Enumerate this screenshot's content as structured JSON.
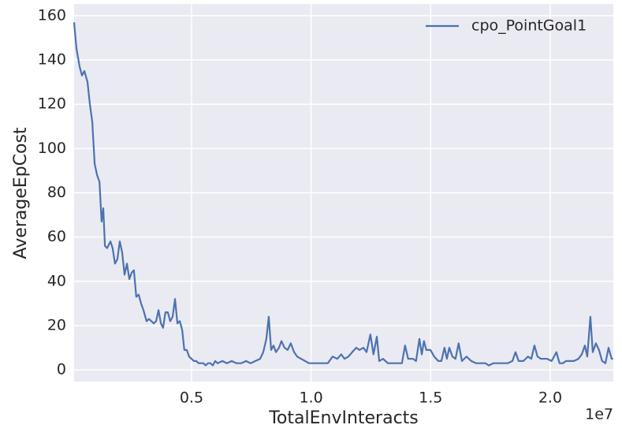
{
  "chart_data": {
    "type": "line",
    "xlabel": "TotalEnvInteracts",
    "ylabel": "AverageEpCost",
    "x_offset_label": "1e7",
    "xlim": [
      0.009,
      2.264
    ],
    "ylim": [
      -5.3,
      165.3
    ],
    "xticks": [
      0.5,
      {
        "value": 1,
        "label": "1.0"
      },
      1.5,
      {
        "value": 2,
        "label": "2.0"
      }
    ],
    "yticks": [
      0,
      20,
      40,
      60,
      80,
      100,
      120,
      140,
      160
    ],
    "grid": true,
    "legend": "upper right",
    "x": [
      0.009,
      0.019,
      0.032,
      0.042,
      0.052,
      0.065,
      0.075,
      0.085,
      0.095,
      0.105,
      0.115,
      0.124,
      0.131,
      0.138,
      0.147,
      0.161,
      0.17,
      0.18,
      0.19,
      0.2,
      0.21,
      0.22,
      0.23,
      0.24,
      0.25,
      0.259,
      0.269,
      0.279,
      0.289,
      0.299,
      0.312,
      0.322,
      0.332,
      0.342,
      0.352,
      0.362,
      0.372,
      0.381,
      0.391,
      0.401,
      0.411,
      0.421,
      0.431,
      0.441,
      0.451,
      0.461,
      0.47,
      0.48,
      0.49,
      0.5,
      0.51,
      0.52,
      0.53,
      0.54,
      0.55,
      0.559,
      0.569,
      0.579,
      0.589,
      0.599,
      0.609,
      0.629,
      0.648,
      0.668,
      0.688,
      0.708,
      0.728,
      0.747,
      0.767,
      0.787,
      0.8,
      0.813,
      0.823,
      0.833,
      0.843,
      0.853,
      0.866,
      0.876,
      0.889,
      0.902,
      0.915,
      0.929,
      0.942,
      0.958,
      0.975,
      0.991,
      1.011,
      1.031,
      1.051,
      1.07,
      1.09,
      1.11,
      1.126,
      1.14,
      1.156,
      1.172,
      1.189,
      1.202,
      1.219,
      1.232,
      1.248,
      1.261,
      1.275,
      1.285,
      1.301,
      1.321,
      1.341,
      1.36,
      1.38,
      1.393,
      1.406,
      1.426,
      1.439,
      1.453,
      1.463,
      1.472,
      1.482,
      1.499,
      1.515,
      1.532,
      1.545,
      1.558,
      1.568,
      1.578,
      1.591,
      1.604,
      1.617,
      1.631,
      1.65,
      1.67,
      1.69,
      1.71,
      1.729,
      1.743,
      1.762,
      1.782,
      1.802,
      1.822,
      1.842,
      1.855,
      1.868,
      1.888,
      1.907,
      1.921,
      1.934,
      1.947,
      1.961,
      1.973,
      1.987,
      2.006,
      2.026,
      2.039,
      2.053,
      2.066,
      2.079,
      2.099,
      2.118,
      2.132,
      2.145,
      2.155,
      2.168,
      2.178,
      2.191,
      2.204,
      2.217,
      2.231,
      2.244,
      2.257,
      2.263
    ],
    "series": [
      {
        "name": "cpo_PointGoal1",
        "color": "#4c72b0",
        "values": [
          157,
          145,
          137,
          133,
          135,
          130,
          120,
          112,
          93,
          88,
          85,
          67,
          73,
          56,
          55,
          58,
          55,
          48,
          50,
          58,
          53,
          43,
          48,
          41,
          44,
          45,
          33,
          34,
          30,
          27,
          22,
          23,
          22,
          21,
          22,
          27,
          21,
          19,
          26,
          26,
          22,
          24,
          32,
          21,
          22,
          18,
          9,
          9,
          6,
          5,
          4,
          4,
          3,
          3,
          3,
          2,
          3,
          3,
          2,
          4,
          3,
          4,
          3,
          4,
          3,
          3,
          4,
          3,
          4,
          5,
          8,
          14,
          24,
          9,
          11,
          8,
          10,
          13,
          10,
          9,
          12,
          8,
          6,
          5,
          4,
          3,
          3,
          3,
          3,
          3,
          6,
          5,
          7,
          5,
          6,
          8,
          10,
          9,
          10,
          8,
          16,
          7,
          15,
          4,
          5,
          3,
          3,
          3,
          3,
          11,
          5,
          5,
          4,
          14,
          7,
          13,
          9,
          9,
          6,
          4,
          4,
          10,
          5,
          10,
          6,
          5,
          12,
          4,
          6,
          4,
          3,
          3,
          3,
          2,
          3,
          3,
          3,
          3,
          4,
          8,
          4,
          4,
          6,
          5,
          11,
          6,
          5,
          5,
          5,
          4,
          8,
          3,
          3,
          4,
          4,
          4,
          5,
          7,
          11,
          6,
          24,
          8,
          12,
          9,
          4,
          3,
          10,
          5,
          5
        ]
      }
    ]
  }
}
